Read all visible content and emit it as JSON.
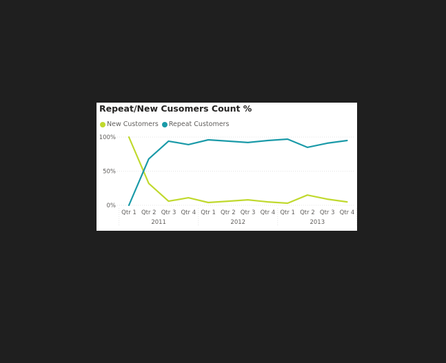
{
  "chart_data": {
    "type": "line",
    "title": "Repeat/New Cusomers Count %",
    "categories": [
      "Qtr 1",
      "Qtr 2",
      "Qtr 3",
      "Qtr 4",
      "Qtr 1",
      "Qtr 2",
      "Qtr 3",
      "Qtr 4",
      "Qtr 1",
      "Qtr 2",
      "Qtr 3",
      "Qtr 4"
    ],
    "year_groups": [
      {
        "label": "2011",
        "start": 0,
        "end": 3
      },
      {
        "label": "2012",
        "start": 4,
        "end": 7
      },
      {
        "label": "2013",
        "start": 8,
        "end": 11
      }
    ],
    "series": [
      {
        "name": "New Customers",
        "color": "#c0d92d",
        "values": [
          100,
          32,
          6,
          11,
          4,
          6,
          8,
          5,
          3,
          15,
          9,
          5
        ]
      },
      {
        "name": "Repeat Customers",
        "color": "#1a9aa8",
        "values": [
          0,
          68,
          94,
          89,
          96,
          94,
          92,
          95,
          97,
          85,
          91,
          95
        ]
      }
    ],
    "ylim": [
      0,
      100
    ],
    "yticks": [
      {
        "value": 0,
        "label": "0%"
      },
      {
        "value": 50,
        "label": "50%"
      },
      {
        "value": 100,
        "label": "100%"
      }
    ],
    "grid": true,
    "legend_position": "top-left",
    "xlabel": "",
    "ylabel": ""
  }
}
